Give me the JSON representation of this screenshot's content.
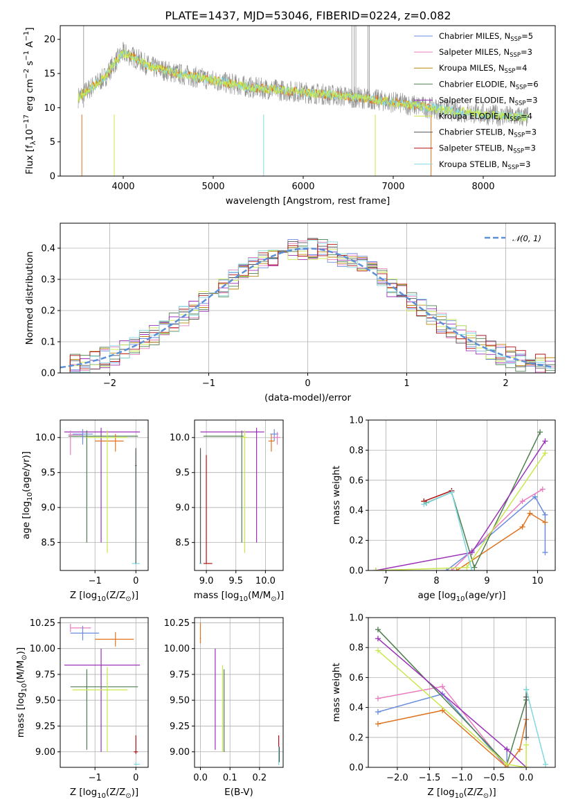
{
  "figure": {
    "title": "PLATE=1437, MJD=53046, FIBERID=0224, z=0.082"
  },
  "colors": {
    "Chabrier MILES": "#6a8de0",
    "Salpeter MILES": "#e87cbf",
    "Kroupa MILES": "#b8860b",
    "Chabrier ELODIE": "#4f7f4f",
    "Salpeter ELODIE": "#9b30b8",
    "Kroupa ELODIE": "#c8e84c",
    "Chabrier STELIB": "#555555",
    "Salpeter STELIB": "#b01010",
    "Kroupa STELIB": "#80d8e0",
    "orange": "#e0731f",
    "spectrum": "#8c8c8c",
    "gauss": "#5b8fd8"
  },
  "chart_data": [
    {
      "id": "spectrum",
      "type": "line",
      "xlabel": "wavelength [Angstrom, rest frame]",
      "ylabel": "Flux [f",
      "ylabel_sub": "λ",
      "ylabel_mid": "10",
      "ylabel_sup1": "−17",
      "ylabel_mid2": " erg cm",
      "ylabel_sup2": "−2",
      "ylabel_mid3": " s",
      "ylabel_sup3": "−1",
      "ylabel_end": " A",
      "ylabel_sup4": "−1",
      "ylabel_close": "]",
      "xlim": [
        3300,
        8800
      ],
      "ylim": [
        0,
        22
      ],
      "xticks": [
        "4000",
        "5000",
        "6000",
        "7000",
        "8000"
      ],
      "xtick_values": [
        4000,
        5000,
        6000,
        7000,
        8000
      ],
      "yticks": [
        "0",
        "5",
        "10",
        "15",
        "20"
      ],
      "ytick_values": [
        0,
        5,
        10,
        15,
        20
      ],
      "grid": false,
      "legend_position": "top-right",
      "continuum_x": [
        3500,
        3600,
        3700,
        3800,
        3900,
        4000,
        4100,
        4300,
        4600,
        5000,
        5400,
        5800,
        6200,
        6600,
        7000,
        7400,
        7800,
        8200,
        8500
      ],
      "continuum_y": [
        11.5,
        12.5,
        13.5,
        14.5,
        16.5,
        18.0,
        17.5,
        16.0,
        15.0,
        14.0,
        13.0,
        12.5,
        12.0,
        11.5,
        10.8,
        10.0,
        9.3,
        8.8,
        8.6
      ],
      "legend": [
        {
          "base": "Chabrier MILES, N",
          "sub": "SSP",
          "suffix": "=5"
        },
        {
          "base": "Salpeter MILES, N",
          "sub": "SSP",
          "suffix": "=3"
        },
        {
          "base": "Kroupa MILES, N",
          "sub": "SSP",
          "suffix": "=4"
        },
        {
          "base": "Chabrier ELODIE, N",
          "sub": "SSP",
          "suffix": "=6"
        },
        {
          "base": "Salpeter ELODIE, N",
          "sub": "SSP",
          "suffix": "=3"
        },
        {
          "base": "Kroupa ELODIE, N",
          "sub": "SSP",
          "suffix": "=4"
        },
        {
          "base": "Chabrier STELIB, N",
          "sub": "SSP",
          "suffix": "=3"
        },
        {
          "base": "Salpeter STELIB, N",
          "sub": "SSP",
          "suffix": "=3"
        },
        {
          "base": "Kroupa STELIB, N",
          "sub": "SSP",
          "suffix": "=3"
        }
      ]
    },
    {
      "id": "residuals",
      "type": "histogram",
      "xlabel": "(data-model)/error",
      "ylabel": "Normed distribution",
      "xlim": [
        -2.5,
        2.5
      ],
      "ylim": [
        0,
        0.48
      ],
      "xticks": [
        "−2",
        "−1",
        "0",
        "1",
        "2"
      ],
      "xtick_values": [
        -2,
        -1,
        0,
        1,
        2
      ],
      "yticks": [
        "0.0",
        "0.1",
        "0.2",
        "0.3",
        "0.4"
      ],
      "ytick_values": [
        0,
        0.1,
        0.2,
        0.3,
        0.4
      ],
      "grid": true,
      "legend_position": "top-right",
      "gauss_label": "𝒩(0, 1)",
      "bin_width": 0.1
    },
    {
      "id": "age_vs_Z",
      "type": "errorbar",
      "xlabel": "Z [log",
      "xlabel_sub": "10",
      "xlabel_end": "(Z/Z",
      "xlabel_sub2": "⊙",
      "xlabel_close": ")]",
      "ylabel": "age  [log",
      "ylabel_sub": "10",
      "ylabel_end": "(age/yr)]",
      "xlim": [
        -1.85,
        0.3
      ],
      "ylim": [
        8.1,
        10.25
      ],
      "xticks": [
        "−1",
        "0"
      ],
      "xtick_values": [
        -1,
        0
      ],
      "yticks": [
        "8.5",
        "9.0",
        "9.5",
        "10.0"
      ],
      "ytick_values": [
        8.5,
        9.0,
        9.5,
        10.0
      ],
      "grid": true,
      "bars": [
        {
          "s": "Salpeter ELODIE",
          "x": -0.85,
          "y": 10.08,
          "x0": -1.75,
          "x1": 0.1,
          "y0": 8.5,
          "y1": 10.14
        },
        {
          "s": "Chabrier ELODIE",
          "x": -1.2,
          "y": 10.02,
          "x0": -1.65,
          "x1": 0.05,
          "y0": 8.5,
          "y1": 10.1
        },
        {
          "s": "Salpeter MILES",
          "x": -1.6,
          "y": 10.04,
          "x0": -1.65,
          "x1": -1.3,
          "y0": 9.75,
          "y1": 10.1
        },
        {
          "s": "Chabrier MILES",
          "x": -1.3,
          "y": 10.05,
          "x0": -1.55,
          "x1": -1.05,
          "y0": 9.9,
          "y1": 10.12
        },
        {
          "s": "orange",
          "x": -0.5,
          "y": 9.95,
          "x0": -1.0,
          "x1": -0.3,
          "y0": 9.8,
          "y1": 10.05
        },
        {
          "s": "Kroupa ELODIE",
          "x": -0.7,
          "y": 10.0,
          "x0": -1.2,
          "x1": -0.2,
          "y0": 8.35,
          "y1": 10.1
        },
        {
          "s": "Kroupa STELIB",
          "x": 0.0,
          "y": 8.2,
          "x0": -0.1,
          "x1": 0.1,
          "y0": 8.18,
          "y1": 9.8
        },
        {
          "s": "Chabrier STELIB",
          "x": 0.0,
          "y": 9.6,
          "x0": -0.02,
          "x1": 0.02,
          "y0": 8.2,
          "y1": 9.85
        }
      ]
    },
    {
      "id": "age_vs_mass",
      "type": "errorbar",
      "xlabel": "mass [log",
      "xlabel_sub": "10",
      "xlabel_end": "(M/M",
      "xlabel_sub2": "⊙",
      "xlabel_close": ")]",
      "xlim": [
        8.8,
        10.3
      ],
      "ylim": [
        8.1,
        10.25
      ],
      "xticks": [
        "9.0",
        "9.5",
        "10.0"
      ],
      "xtick_values": [
        9.0,
        9.5,
        10.0
      ],
      "yticks": [
        "8.5",
        "9.0",
        "9.5",
        "10.0"
      ],
      "ytick_values": [
        8.5,
        9.0,
        9.5,
        10.0
      ],
      "grid": true,
      "bars": [
        {
          "s": "Salpeter ELODIE",
          "x": 9.85,
          "y": 10.08,
          "x0": 8.9,
          "x1": 9.98,
          "y0": 8.5,
          "y1": 10.14
        },
        {
          "s": "Chabrier ELODIE",
          "x": 9.6,
          "y": 10.02,
          "x0": 8.95,
          "x1": 9.63,
          "y0": 8.5,
          "y1": 10.1
        },
        {
          "s": "Chabrier MILES",
          "x": 10.15,
          "y": 10.05,
          "x0": 10.08,
          "x1": 10.22,
          "y0": 9.95,
          "y1": 10.12
        },
        {
          "s": "Salpeter MILES",
          "x": 10.2,
          "y": 10.0,
          "x0": 10.12,
          "x1": 10.25,
          "y0": 9.9,
          "y1": 10.08
        },
        {
          "s": "orange",
          "x": 10.1,
          "y": 9.95,
          "x0": 10.05,
          "x1": 10.15,
          "y0": 9.8,
          "y1": 10.05
        },
        {
          "s": "Kroupa ELODIE",
          "x": 9.65,
          "y": 10.0,
          "x0": 9.6,
          "x1": 9.7,
          "y0": 8.35,
          "y1": 10.1
        },
        {
          "s": "Salpeter STELIB",
          "x": 9.0,
          "y": 8.2,
          "x0": 8.95,
          "x1": 9.1,
          "y0": 8.2,
          "y1": 9.75
        },
        {
          "s": "Kroupa STELIB",
          "x": 8.9,
          "y": 8.2,
          "x0": 8.88,
          "x1": 8.93,
          "y0": 8.2,
          "y1": 9.8
        },
        {
          "s": "Chabrier STELIB",
          "x": 8.9,
          "y": 9.0,
          "x0": 8.89,
          "x1": 8.91,
          "y0": 8.2,
          "y1": 9.85
        }
      ]
    },
    {
      "id": "weight_vs_age",
      "type": "line",
      "xlabel": "age  [log",
      "xlabel_sub": "10",
      "xlabel_end": "(age/yr)]",
      "ylabel": "mass weight",
      "xlim": [
        6.65,
        10.35
      ],
      "ylim": [
        0,
        1.0
      ],
      "xticks": [
        "7",
        "8",
        "9",
        "10"
      ],
      "xtick_values": [
        7,
        8,
        9,
        10
      ],
      "yticks": [
        "0.0",
        "0.2",
        "0.4",
        "0.6",
        "0.8",
        "1.0"
      ],
      "ytick_values": [
        0,
        0.2,
        0.4,
        0.6,
        0.8,
        1.0
      ],
      "grid": true,
      "series": [
        {
          "s": "Chabrier MILES",
          "x": [
            8.2,
            8.7,
            9.95,
            10.15,
            10.15
          ],
          "y": [
            0.0,
            0.13,
            0.49,
            0.37,
            0.12
          ]
        },
        {
          "s": "Salpeter MILES",
          "x": [
            8.3,
            9.7,
            10.1
          ],
          "y": [
            0.0,
            0.46,
            0.54
          ]
        },
        {
          "s": "orange",
          "x": [
            8.4,
            9.7,
            9.85,
            10.15
          ],
          "y": [
            0.0,
            0.29,
            0.38,
            0.32
          ]
        },
        {
          "s": "Chabrier ELODIE",
          "x": [
            7.8,
            8.3,
            8.75,
            10.05
          ],
          "y": [
            0.45,
            0.52,
            0.02,
            0.92
          ]
        },
        {
          "s": "Salpeter ELODIE",
          "x": [
            6.8,
            8.7,
            10.15
          ],
          "y": [
            0.0,
            0.12,
            0.86
          ]
        },
        {
          "s": "Kroupa ELODIE",
          "x": [
            6.8,
            8.6,
            10.15
          ],
          "y": [
            0.0,
            0.02,
            0.78
          ]
        },
        {
          "s": "Salpeter STELIB",
          "x": [
            7.75,
            8.3
          ],
          "y": [
            0.46,
            0.53
          ]
        },
        {
          "s": "Kroupa STELIB",
          "x": [
            7.75,
            8.3,
            8.7
          ],
          "y": [
            0.44,
            0.52,
            0.0
          ]
        }
      ]
    },
    {
      "id": "mass_vs_Z",
      "type": "errorbar",
      "xlabel": "Z [log",
      "xlabel_sub": "10",
      "xlabel_end": "(Z/Z",
      "xlabel_sub2": "⊙",
      "xlabel_close": ")]",
      "ylabel": "mass [log",
      "ylabel_sub": "10",
      "ylabel_end": "(M/M",
      "ylabel_sub2": "⊙",
      "ylabel_close": ")]",
      "xlim": [
        -1.85,
        0.3
      ],
      "ylim": [
        8.85,
        10.3
      ],
      "xticks": [
        "−1",
        "0"
      ],
      "xtick_values": [
        -1,
        0
      ],
      "yticks": [
        "9.00",
        "9.25",
        "9.50",
        "9.75",
        "10.00",
        "10.25"
      ],
      "ytick_values": [
        9.0,
        9.25,
        9.5,
        9.75,
        10.0,
        10.25
      ],
      "grid": true,
      "bars": [
        {
          "s": "Salpeter MILES",
          "x": -1.6,
          "y": 10.2,
          "x0": -1.6,
          "x1": -1.1,
          "y0": 10.16,
          "y1": 10.24
        },
        {
          "s": "Chabrier MILES",
          "x": -1.3,
          "y": 10.15,
          "x0": -1.6,
          "x1": -0.9,
          "y0": 10.08,
          "y1": 10.22
        },
        {
          "s": "orange",
          "x": -0.5,
          "y": 10.09,
          "x0": -1.0,
          "x1": -0.05,
          "y0": 10.02,
          "y1": 10.16
        },
        {
          "s": "Salpeter ELODIE",
          "x": -0.85,
          "y": 9.84,
          "x0": -1.75,
          "x1": 0.1,
          "y0": 9.0,
          "y1": 10.0
        },
        {
          "s": "Chabrier ELODIE",
          "x": -1.2,
          "y": 9.63,
          "x0": -1.6,
          "x1": 0.05,
          "y0": 9.02,
          "y1": 9.8
        },
        {
          "s": "Kroupa ELODIE",
          "x": -0.7,
          "y": 9.6,
          "x0": -1.55,
          "x1": -0.2,
          "y0": 9.0,
          "y1": 9.82
        },
        {
          "s": "Salpeter STELIB",
          "x": 0.0,
          "y": 9.0,
          "x0": -0.05,
          "x1": 0.05,
          "y0": 8.98,
          "y1": 9.16
        },
        {
          "s": "Kroupa STELIB",
          "x": 0.0,
          "y": 8.88,
          "x0": -0.05,
          "x1": 0.1,
          "y0": 8.87,
          "y1": 8.9
        }
      ]
    },
    {
      "id": "mass_vs_EBV",
      "type": "errorbar",
      "xlabel": "E(B-V)",
      "xlim": [
        -0.02,
        0.28
      ],
      "ylim": [
        8.85,
        10.3
      ],
      "xticks": [
        "0.0",
        "0.1",
        "0.2"
      ],
      "xtick_values": [
        0,
        0.1,
        0.2
      ],
      "yticks": [
        "9.00",
        "9.25",
        "9.50",
        "9.75",
        "10.00",
        "10.25"
      ],
      "ytick_values": [
        9.0,
        9.25,
        9.5,
        9.75,
        10.0,
        10.25
      ],
      "grid": true,
      "bars": [
        {
          "s": "orange",
          "x": 0.0,
          "y": 10.1,
          "x0": -0.002,
          "x1": 0.002,
          "y0": 10.05,
          "y1": 10.25
        },
        {
          "s": "Salpeter ELODIE",
          "x": 0.05,
          "y": 9.5,
          "x0": 0.049,
          "x1": 0.051,
          "y0": 9.02,
          "y1": 10.0
        },
        {
          "s": "Kroupa ELODIE",
          "x": 0.075,
          "y": 9.5,
          "x0": 0.074,
          "x1": 0.076,
          "y0": 9.0,
          "y1": 9.84
        },
        {
          "s": "Chabrier ELODIE",
          "x": 0.08,
          "y": 9.5,
          "x0": 0.079,
          "x1": 0.081,
          "y0": 9.0,
          "y1": 9.8
        },
        {
          "s": "Salpeter STELIB",
          "x": 0.265,
          "y": 9.0,
          "x0": 0.264,
          "x1": 0.266,
          "y0": 8.98,
          "y1": 9.16
        },
        {
          "s": "Kroupa STELIB",
          "x": 0.265,
          "y": 8.88,
          "x0": 0.264,
          "x1": 0.266,
          "y0": 8.87,
          "y1": 9.05
        },
        {
          "s": "Chabrier STELIB",
          "x": 0.267,
          "y": 9.0,
          "x0": 0.266,
          "x1": 0.268,
          "y0": 8.9,
          "y1": 9.05
        }
      ]
    },
    {
      "id": "weight_vs_Z",
      "type": "line",
      "xlabel": "Z [log",
      "xlabel_sub": "10",
      "xlabel_end": "(Z/Z",
      "xlabel_sub2": "⊙",
      "xlabel_close": ")]",
      "ylabel": "mass weight",
      "xlim": [
        -2.45,
        0.45
      ],
      "ylim": [
        0,
        1.0
      ],
      "xticks": [
        "−2.0",
        "−1.5",
        "−1.0",
        "−0.5",
        "0.0"
      ],
      "xtick_values": [
        -2.0,
        -1.5,
        -1.0,
        -0.5,
        0.0
      ],
      "yticks": [
        "0.0",
        "0.2",
        "0.4",
        "0.6",
        "0.8",
        "1.0"
      ],
      "ytick_values": [
        0,
        0.2,
        0.4,
        0.6,
        0.8,
        1.0
      ],
      "grid": true,
      "series": [
        {
          "s": "Chabrier MILES",
          "x": [
            -2.3,
            -1.3,
            -0.3,
            -0.3
          ],
          "y": [
            0.37,
            0.49,
            0.0,
            0.12
          ]
        },
        {
          "s": "Salpeter MILES",
          "x": [
            -2.3,
            -1.3,
            -0.3
          ],
          "y": [
            0.46,
            0.54,
            0.0
          ]
        },
        {
          "s": "orange",
          "x": [
            -2.3,
            -1.3,
            -0.3,
            -0.1,
            0.0
          ],
          "y": [
            0.29,
            0.38,
            0.0,
            0.12,
            0.32
          ]
        },
        {
          "s": "Chabrier ELODIE",
          "x": [
            -2.3,
            -0.3,
            0.0,
            0.0
          ],
          "y": [
            0.92,
            0.02,
            0.45,
            0.52
          ]
        },
        {
          "s": "Salpeter ELODIE",
          "x": [
            -2.3,
            -0.3,
            0.0
          ],
          "y": [
            0.86,
            0.12,
            0.0
          ]
        },
        {
          "s": "Kroupa ELODIE",
          "x": [
            -2.3,
            -0.3,
            0.0,
            0.0
          ],
          "y": [
            0.78,
            0.02,
            0.0,
            0.15
          ]
        },
        {
          "s": "Chabrier STELIB",
          "x": [
            0.0,
            0.0
          ],
          "y": [
            0.2,
            0.47
          ]
        },
        {
          "s": "Kroupa STELIB",
          "x": [
            0.0,
            0.3
          ],
          "y": [
            0.52,
            0.02
          ]
        }
      ]
    }
  ]
}
